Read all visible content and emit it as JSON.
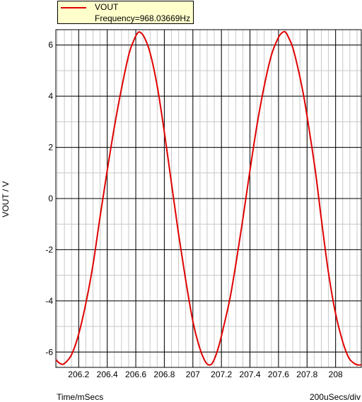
{
  "chart_data": {
    "type": "line",
    "title": "",
    "xlabel": "Time/mSecs",
    "ylabel": "VOUT / V",
    "x_division_label": "200uSecs/div",
    "xlim": [
      206.04,
      208.18
    ],
    "ylim": [
      -6.6,
      6.6
    ],
    "x_ticks": [
      206.2,
      206.4,
      206.6,
      206.8,
      207,
      207.2,
      207.4,
      207.6,
      207.8,
      208
    ],
    "x_tick_labels": [
      "206.2",
      "206.4",
      "206.6",
      "206.8",
      "207",
      "207.2",
      "207.4",
      "207.6",
      "207.8",
      "208"
    ],
    "y_ticks": [
      6,
      4,
      2,
      0,
      -2,
      -4,
      -6
    ],
    "y_tick_labels": [
      "6",
      "4",
      "2",
      "0",
      "-2",
      "-4",
      "-6"
    ],
    "grid": true,
    "legend_position": "top-left",
    "series": [
      {
        "name": "VOUT",
        "color": "#e00000",
        "x": [
          206.04,
          206.07,
          206.1,
          206.15,
          206.2,
          206.25,
          206.3,
          206.35,
          206.4,
          206.45,
          206.5,
          206.55,
          206.58,
          206.61,
          206.63,
          206.66,
          206.7,
          206.75,
          206.8,
          206.85,
          206.9,
          206.95,
          207.0,
          207.04,
          207.08,
          207.11,
          207.14,
          207.18,
          207.22,
          207.26,
          207.3,
          207.35,
          207.4,
          207.45,
          207.5,
          207.55,
          207.6,
          207.63,
          207.65,
          207.67,
          207.7,
          207.74,
          207.78,
          207.82,
          207.86,
          207.9,
          207.95,
          208.0,
          208.05,
          208.09,
          208.12,
          208.15,
          208.18
        ],
        "y": [
          -6.3,
          -6.45,
          -6.45,
          -6.1,
          -5.3,
          -4.1,
          -2.6,
          -0.7,
          1.1,
          2.8,
          4.3,
          5.6,
          6.1,
          6.45,
          6.5,
          6.3,
          5.7,
          4.4,
          2.6,
          0.6,
          -1.4,
          -3.2,
          -4.8,
          -5.7,
          -6.3,
          -6.5,
          -6.4,
          -5.8,
          -4.9,
          -3.9,
          -2.6,
          -0.8,
          1.1,
          2.9,
          4.4,
          5.6,
          6.3,
          6.5,
          6.5,
          6.3,
          5.9,
          5.0,
          3.9,
          2.5,
          1.0,
          -0.8,
          -2.9,
          -4.5,
          -5.6,
          -6.2,
          -6.4,
          -6.5,
          -6.5
        ]
      }
    ]
  },
  "legend": {
    "series_name": "VOUT",
    "frequency_text": "Frequency=968.03669Hz"
  }
}
